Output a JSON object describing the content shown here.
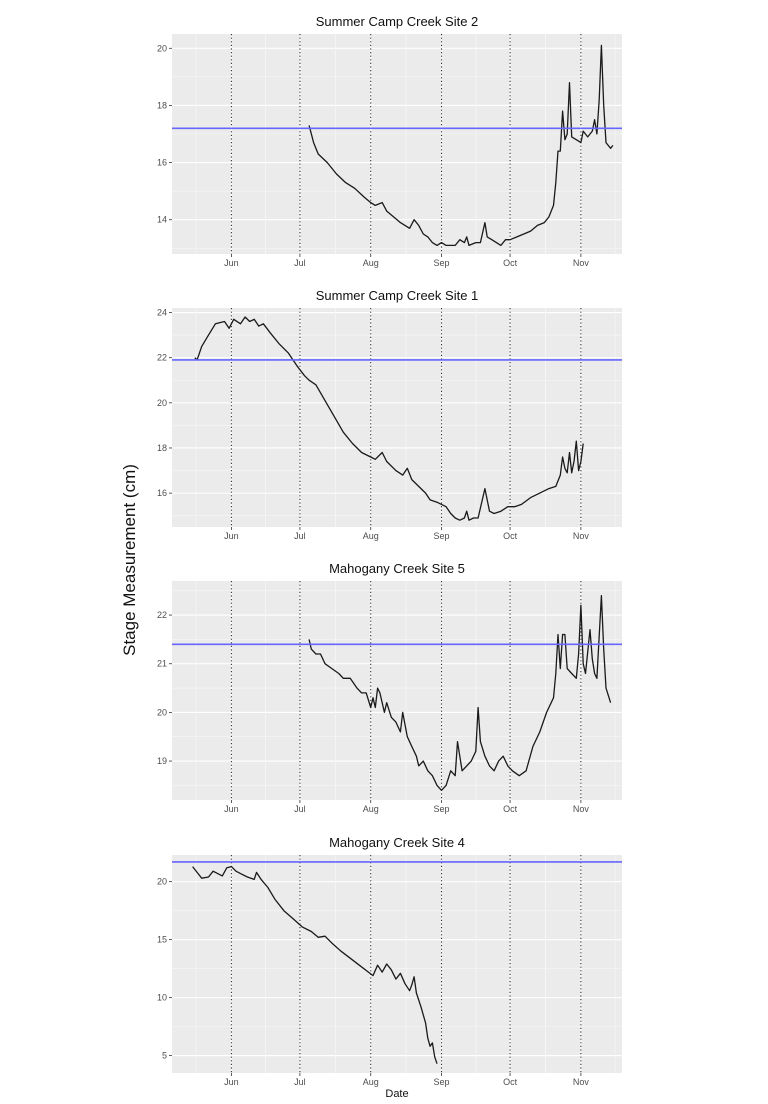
{
  "figure": {
    "ylabel": "Stage Measurement (cm)",
    "xlabel": "Date"
  },
  "chart_data": [
    {
      "type": "line",
      "title": "Summer Camp Creek Site 2",
      "xlabel": "",
      "ylabel": "",
      "x_ticks": [
        "Jun",
        "Jul",
        "Aug",
        "Sep",
        "Oct",
        "Nov"
      ],
      "y_ticks": [
        14,
        16,
        18,
        20
      ],
      "xlim": [
        "2019-05-06",
        "2019-11-19"
      ],
      "ylim": [
        12.8,
        20.5
      ],
      "grid": true,
      "reference_line": {
        "y": 17.2,
        "color": "#6666ff"
      },
      "month_markers": [
        "2019-06-01",
        "2019-07-01",
        "2019-08-01",
        "2019-09-01",
        "2019-10-01",
        "2019-11-01"
      ],
      "line_color": "#1a1a1a",
      "points": [
        [
          "2019-07-05",
          17.3
        ],
        [
          "2019-07-07",
          16.7
        ],
        [
          "2019-07-09",
          16.3
        ],
        [
          "2019-07-13",
          16.0
        ],
        [
          "2019-07-17",
          15.6
        ],
        [
          "2019-07-21",
          15.3
        ],
        [
          "2019-07-25",
          15.1
        ],
        [
          "2019-07-29",
          14.8
        ],
        [
          "2019-08-01",
          14.6
        ],
        [
          "2019-08-03",
          14.5
        ],
        [
          "2019-08-06",
          14.6
        ],
        [
          "2019-08-08",
          14.3
        ],
        [
          "2019-08-11",
          14.1
        ],
        [
          "2019-08-14",
          13.9
        ],
        [
          "2019-08-16",
          13.8
        ],
        [
          "2019-08-18",
          13.7
        ],
        [
          "2019-08-20",
          14.0
        ],
        [
          "2019-08-22",
          13.8
        ],
        [
          "2019-08-24",
          13.5
        ],
        [
          "2019-08-26",
          13.4
        ],
        [
          "2019-08-28",
          13.2
        ],
        [
          "2019-08-30",
          13.1
        ],
        [
          "2019-09-01",
          13.2
        ],
        [
          "2019-09-03",
          13.1
        ],
        [
          "2019-09-05",
          13.1
        ],
        [
          "2019-09-07",
          13.1
        ],
        [
          "2019-09-09",
          13.3
        ],
        [
          "2019-09-11",
          13.2
        ],
        [
          "2019-09-12",
          13.4
        ],
        [
          "2019-09-13",
          13.1
        ],
        [
          "2019-09-16",
          13.2
        ],
        [
          "2019-09-18",
          13.2
        ],
        [
          "2019-09-20",
          13.9
        ],
        [
          "2019-09-21",
          13.4
        ],
        [
          "2019-09-23",
          13.3
        ],
        [
          "2019-09-25",
          13.2
        ],
        [
          "2019-09-27",
          13.1
        ],
        [
          "2019-09-29",
          13.3
        ],
        [
          "2019-10-01",
          13.3
        ],
        [
          "2019-10-04",
          13.4
        ],
        [
          "2019-10-07",
          13.5
        ],
        [
          "2019-10-10",
          13.6
        ],
        [
          "2019-10-13",
          13.8
        ],
        [
          "2019-10-16",
          13.9
        ],
        [
          "2019-10-18",
          14.1
        ],
        [
          "2019-10-20",
          14.5
        ],
        [
          "2019-10-21",
          15.3
        ],
        [
          "2019-10-22",
          16.4
        ],
        [
          "2019-10-23",
          16.4
        ],
        [
          "2019-10-24",
          17.8
        ],
        [
          "2019-10-25",
          16.8
        ],
        [
          "2019-10-26",
          17.0
        ],
        [
          "2019-10-27",
          18.8
        ],
        [
          "2019-10-28",
          16.9
        ],
        [
          "2019-10-30",
          16.8
        ],
        [
          "2019-11-01",
          16.7
        ],
        [
          "2019-11-02",
          17.1
        ],
        [
          "2019-11-04",
          16.9
        ],
        [
          "2019-11-06",
          17.1
        ],
        [
          "2019-11-07",
          17.5
        ],
        [
          "2019-11-08",
          17.0
        ],
        [
          "2019-11-09",
          18.2
        ],
        [
          "2019-11-10",
          20.1
        ],
        [
          "2019-11-11",
          18.0
        ],
        [
          "2019-11-12",
          16.7
        ],
        [
          "2019-11-14",
          16.5
        ],
        [
          "2019-11-15",
          16.6
        ]
      ]
    },
    {
      "type": "line",
      "title": "Summer Camp Creek Site 1",
      "xlabel": "",
      "ylabel": "",
      "x_ticks": [
        "Jun",
        "Jul",
        "Aug",
        "Sep",
        "Oct",
        "Nov"
      ],
      "y_ticks": [
        16,
        18,
        20,
        22,
        24
      ],
      "xlim": [
        "2019-05-06",
        "2019-11-19"
      ],
      "ylim": [
        14.5,
        24.2
      ],
      "grid": true,
      "reference_line": {
        "y": 21.9,
        "color": "#6666ff"
      },
      "month_markers": [
        "2019-06-01",
        "2019-07-01",
        "2019-08-01",
        "2019-09-01",
        "2019-10-01",
        "2019-11-01"
      ],
      "line_color": "#1a1a1a",
      "points": [
        [
          "2019-05-16",
          22.0
        ],
        [
          "2019-05-17",
          21.9
        ],
        [
          "2019-05-19",
          22.5
        ],
        [
          "2019-05-22",
          23.0
        ],
        [
          "2019-05-25",
          23.5
        ],
        [
          "2019-05-29",
          23.6
        ],
        [
          "2019-05-31",
          23.3
        ],
        [
          "2019-06-02",
          23.7
        ],
        [
          "2019-06-05",
          23.5
        ],
        [
          "2019-06-07",
          23.8
        ],
        [
          "2019-06-09",
          23.6
        ],
        [
          "2019-06-11",
          23.7
        ],
        [
          "2019-06-13",
          23.4
        ],
        [
          "2019-06-15",
          23.5
        ],
        [
          "2019-06-18",
          23.1
        ],
        [
          "2019-06-22",
          22.6
        ],
        [
          "2019-06-26",
          22.2
        ],
        [
          "2019-06-30",
          21.6
        ],
        [
          "2019-07-03",
          21.2
        ],
        [
          "2019-07-05",
          21.0
        ],
        [
          "2019-07-08",
          20.8
        ],
        [
          "2019-07-12",
          20.1
        ],
        [
          "2019-07-16",
          19.4
        ],
        [
          "2019-07-20",
          18.7
        ],
        [
          "2019-07-24",
          18.2
        ],
        [
          "2019-07-28",
          17.8
        ],
        [
          "2019-08-01",
          17.6
        ],
        [
          "2019-08-03",
          17.5
        ],
        [
          "2019-08-06",
          17.8
        ],
        [
          "2019-08-08",
          17.4
        ],
        [
          "2019-08-12",
          17.0
        ],
        [
          "2019-08-15",
          16.8
        ],
        [
          "2019-08-17",
          17.1
        ],
        [
          "2019-08-19",
          16.6
        ],
        [
          "2019-08-22",
          16.3
        ],
        [
          "2019-08-25",
          16.0
        ],
        [
          "2019-08-27",
          15.7
        ],
        [
          "2019-08-30",
          15.6
        ],
        [
          "2019-09-01",
          15.5
        ],
        [
          "2019-09-03",
          15.4
        ],
        [
          "2019-09-05",
          15.1
        ],
        [
          "2019-09-07",
          14.9
        ],
        [
          "2019-09-09",
          14.8
        ],
        [
          "2019-09-11",
          14.9
        ],
        [
          "2019-09-12",
          15.2
        ],
        [
          "2019-09-13",
          14.8
        ],
        [
          "2019-09-15",
          14.9
        ],
        [
          "2019-09-17",
          14.9
        ],
        [
          "2019-09-20",
          16.2
        ],
        [
          "2019-09-22",
          15.2
        ],
        [
          "2019-09-24",
          15.1
        ],
        [
          "2019-09-27",
          15.2
        ],
        [
          "2019-09-30",
          15.4
        ],
        [
          "2019-10-03",
          15.4
        ],
        [
          "2019-10-06",
          15.5
        ],
        [
          "2019-10-10",
          15.8
        ],
        [
          "2019-10-14",
          16.0
        ],
        [
          "2019-10-18",
          16.2
        ],
        [
          "2019-10-21",
          16.3
        ],
        [
          "2019-10-23",
          16.8
        ],
        [
          "2019-10-24",
          17.6
        ],
        [
          "2019-10-25",
          17.1
        ],
        [
          "2019-10-26",
          16.9
        ],
        [
          "2019-10-27",
          17.8
        ],
        [
          "2019-10-28",
          16.9
        ],
        [
          "2019-10-29",
          17.4
        ],
        [
          "2019-10-30",
          18.3
        ],
        [
          "2019-10-31",
          17.0
        ],
        [
          "2019-11-01",
          17.4
        ],
        [
          "2019-11-02",
          18.2
        ]
      ]
    },
    {
      "type": "line",
      "title": "Mahogany Creek Site 5",
      "xlabel": "",
      "ylabel": "",
      "x_ticks": [
        "Jun",
        "Jul",
        "Aug",
        "Sep",
        "Oct",
        "Nov"
      ],
      "y_ticks": [
        19,
        20,
        21,
        22
      ],
      "xlim": [
        "2019-05-06",
        "2019-11-19"
      ],
      "ylim": [
        18.2,
        22.7
      ],
      "grid": true,
      "reference_line": {
        "y": 21.4,
        "color": "#6666ff"
      },
      "month_markers": [
        "2019-06-01",
        "2019-07-01",
        "2019-08-01",
        "2019-09-01",
        "2019-10-01",
        "2019-11-01"
      ],
      "line_color": "#1a1a1a",
      "points": [
        [
          "2019-07-05",
          21.5
        ],
        [
          "2019-07-06",
          21.3
        ],
        [
          "2019-07-08",
          21.2
        ],
        [
          "2019-07-10",
          21.2
        ],
        [
          "2019-07-12",
          21.0
        ],
        [
          "2019-07-15",
          20.9
        ],
        [
          "2019-07-18",
          20.8
        ],
        [
          "2019-07-20",
          20.7
        ],
        [
          "2019-07-23",
          20.7
        ],
        [
          "2019-07-26",
          20.5
        ],
        [
          "2019-07-28",
          20.4
        ],
        [
          "2019-07-30",
          20.4
        ],
        [
          "2019-08-01",
          20.1
        ],
        [
          "2019-08-02",
          20.3
        ],
        [
          "2019-08-03",
          20.1
        ],
        [
          "2019-08-04",
          20.5
        ],
        [
          "2019-08-05",
          20.4
        ],
        [
          "2019-08-07",
          20.0
        ],
        [
          "2019-08-08",
          20.2
        ],
        [
          "2019-08-10",
          19.9
        ],
        [
          "2019-08-12",
          19.8
        ],
        [
          "2019-08-14",
          19.6
        ],
        [
          "2019-08-15",
          20.0
        ],
        [
          "2019-08-17",
          19.5
        ],
        [
          "2019-08-19",
          19.3
        ],
        [
          "2019-08-21",
          19.1
        ],
        [
          "2019-08-22",
          18.9
        ],
        [
          "2019-08-24",
          19.0
        ],
        [
          "2019-08-26",
          18.8
        ],
        [
          "2019-08-28",
          18.7
        ],
        [
          "2019-08-30",
          18.5
        ],
        [
          "2019-09-01",
          18.4
        ],
        [
          "2019-09-03",
          18.5
        ],
        [
          "2019-09-05",
          18.8
        ],
        [
          "2019-09-07",
          18.7
        ],
        [
          "2019-09-08",
          19.4
        ],
        [
          "2019-09-09",
          19.1
        ],
        [
          "2019-09-10",
          18.8
        ],
        [
          "2019-09-12",
          18.9
        ],
        [
          "2019-09-14",
          19.0
        ],
        [
          "2019-09-16",
          19.2
        ],
        [
          "2019-09-17",
          20.1
        ],
        [
          "2019-09-18",
          19.4
        ],
        [
          "2019-09-20",
          19.1
        ],
        [
          "2019-09-22",
          18.9
        ],
        [
          "2019-09-24",
          18.8
        ],
        [
          "2019-09-26",
          19.0
        ],
        [
          "2019-09-28",
          19.1
        ],
        [
          "2019-09-30",
          18.9
        ],
        [
          "2019-10-02",
          18.8
        ],
        [
          "2019-10-05",
          18.7
        ],
        [
          "2019-10-08",
          18.8
        ],
        [
          "2019-10-11",
          19.3
        ],
        [
          "2019-10-14",
          19.6
        ],
        [
          "2019-10-17",
          20.0
        ],
        [
          "2019-10-20",
          20.3
        ],
        [
          "2019-10-21",
          20.8
        ],
        [
          "2019-10-22",
          21.6
        ],
        [
          "2019-10-23",
          20.9
        ],
        [
          "2019-10-24",
          21.6
        ],
        [
          "2019-10-25",
          21.6
        ],
        [
          "2019-10-26",
          20.9
        ],
        [
          "2019-10-28",
          20.8
        ],
        [
          "2019-10-30",
          20.7
        ],
        [
          "2019-10-31",
          21.2
        ],
        [
          "2019-11-01",
          22.2
        ],
        [
          "2019-11-02",
          21.0
        ],
        [
          "2019-11-03",
          20.8
        ],
        [
          "2019-11-05",
          21.7
        ],
        [
          "2019-11-06",
          21.1
        ],
        [
          "2019-11-07",
          20.8
        ],
        [
          "2019-11-08",
          20.7
        ],
        [
          "2019-11-10",
          22.4
        ],
        [
          "2019-11-11",
          21.3
        ],
        [
          "2019-11-12",
          20.5
        ],
        [
          "2019-11-14",
          20.2
        ]
      ]
    },
    {
      "type": "line",
      "title": "Mahogany Creek Site 4",
      "xlabel": "Date",
      "ylabel": "",
      "x_ticks": [
        "Jun",
        "Jul",
        "Aug",
        "Sep",
        "Oct",
        "Nov"
      ],
      "y_ticks": [
        5,
        10,
        15,
        20
      ],
      "xlim": [
        "2019-05-06",
        "2019-11-19"
      ],
      "ylim": [
        3.5,
        22.3
      ],
      "grid": true,
      "reference_line": {
        "y": 21.7,
        "color": "#6666ff"
      },
      "month_markers": [
        "2019-06-01",
        "2019-07-01",
        "2019-08-01",
        "2019-09-01",
        "2019-10-01",
        "2019-11-01"
      ],
      "line_color": "#1a1a1a",
      "points": [
        [
          "2019-05-15",
          21.3
        ],
        [
          "2019-05-17",
          20.8
        ],
        [
          "2019-05-19",
          20.3
        ],
        [
          "2019-05-22",
          20.4
        ],
        [
          "2019-05-24",
          20.9
        ],
        [
          "2019-05-26",
          20.7
        ],
        [
          "2019-05-28",
          20.5
        ],
        [
          "2019-05-30",
          21.2
        ],
        [
          "2019-06-01",
          21.3
        ],
        [
          "2019-06-03",
          20.9
        ],
        [
          "2019-06-05",
          20.7
        ],
        [
          "2019-06-08",
          20.4
        ],
        [
          "2019-06-11",
          20.2
        ],
        [
          "2019-06-12",
          20.8
        ],
        [
          "2019-06-14",
          20.2
        ],
        [
          "2019-06-17",
          19.5
        ],
        [
          "2019-06-20",
          18.5
        ],
        [
          "2019-06-24",
          17.5
        ],
        [
          "2019-06-28",
          16.8
        ],
        [
          "2019-07-02",
          16.1
        ],
        [
          "2019-07-06",
          15.7
        ],
        [
          "2019-07-09",
          15.2
        ],
        [
          "2019-07-12",
          15.3
        ],
        [
          "2019-07-15",
          14.7
        ],
        [
          "2019-07-19",
          14.0
        ],
        [
          "2019-07-23",
          13.4
        ],
        [
          "2019-07-27",
          12.8
        ],
        [
          "2019-07-31",
          12.2
        ],
        [
          "2019-08-02",
          11.9
        ],
        [
          "2019-08-04",
          12.8
        ],
        [
          "2019-08-06",
          12.2
        ],
        [
          "2019-08-08",
          12.9
        ],
        [
          "2019-08-10",
          12.4
        ],
        [
          "2019-08-12",
          11.6
        ],
        [
          "2019-08-14",
          12.1
        ],
        [
          "2019-08-16",
          11.2
        ],
        [
          "2019-08-18",
          10.6
        ],
        [
          "2019-08-19",
          11.1
        ],
        [
          "2019-08-20",
          11.8
        ],
        [
          "2019-08-21",
          10.4
        ],
        [
          "2019-08-23",
          9.2
        ],
        [
          "2019-08-25",
          7.8
        ],
        [
          "2019-08-26",
          6.5
        ],
        [
          "2019-08-27",
          5.8
        ],
        [
          "2019-08-28",
          6.1
        ],
        [
          "2019-08-29",
          4.9
        ],
        [
          "2019-08-30",
          4.3
        ]
      ]
    }
  ]
}
